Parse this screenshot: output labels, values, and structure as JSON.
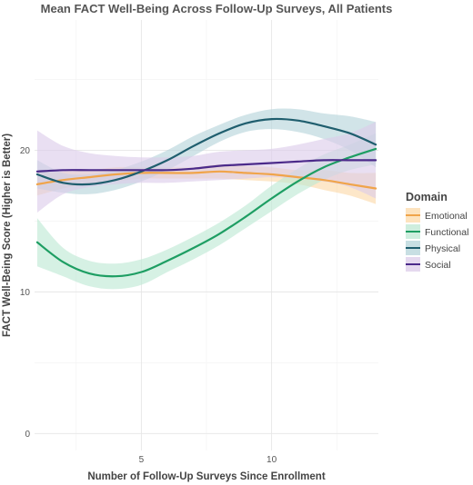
{
  "chart_data": {
    "type": "line",
    "title": "Mean FACT Well-Being Across Follow-Up Surveys, All Patients",
    "xlabel": "Number of Follow-Up Surveys Since Enrollment",
    "ylabel": "FACT Well-Being Score (Higher is Better)",
    "xlim": [
      0.9,
      14.1
    ],
    "ylim": [
      -1.2,
      29.2
    ],
    "x_ticks": [
      5,
      10
    ],
    "y_ticks": [
      0,
      10,
      20
    ],
    "grid": true,
    "legend_title": "Domain",
    "legend_position": "right",
    "x": [
      1,
      2,
      3,
      4,
      5,
      6,
      7,
      8,
      9,
      10,
      11,
      12,
      13,
      14
    ],
    "series": [
      {
        "name": "Emotional",
        "color": "#F0A44A",
        "fill": "#FCD9A8",
        "values": [
          17.6,
          17.9,
          18.1,
          18.3,
          18.4,
          18.4,
          18.4,
          18.5,
          18.4,
          18.3,
          18.1,
          17.9,
          17.6,
          17.3
        ],
        "lower": [
          16.8,
          17.3,
          17.6,
          17.8,
          18.0,
          18.0,
          18.0,
          18.0,
          17.9,
          17.8,
          17.6,
          17.2,
          16.8,
          16.2
        ],
        "upper": [
          18.4,
          18.5,
          18.6,
          18.8,
          18.8,
          18.8,
          18.8,
          19.0,
          18.9,
          18.8,
          18.6,
          18.6,
          18.4,
          18.4
        ]
      },
      {
        "name": "Functional",
        "color": "#1E9E63",
        "fill": "#BDE8D3",
        "values": [
          13.5,
          12.1,
          11.3,
          11.1,
          11.4,
          12.2,
          13.1,
          14.1,
          15.3,
          16.6,
          17.8,
          18.8,
          19.5,
          20.1
        ],
        "lower": [
          11.8,
          11.1,
          10.4,
          10.2,
          10.5,
          11.4,
          12.3,
          13.3,
          14.5,
          15.7,
          16.9,
          17.9,
          18.6,
          19.0
        ],
        "upper": [
          15.2,
          13.1,
          12.2,
          12.0,
          12.3,
          13.0,
          13.9,
          14.9,
          16.1,
          17.5,
          18.7,
          19.7,
          20.4,
          21.2
        ]
      },
      {
        "name": "Physical",
        "color": "#1F5E6E",
        "fill": "#B5D4DA",
        "values": [
          18.3,
          17.7,
          17.6,
          17.9,
          18.5,
          19.3,
          20.3,
          21.2,
          21.9,
          22.2,
          22.1,
          21.7,
          21.2,
          20.4
        ],
        "lower": [
          17.3,
          17.0,
          16.9,
          17.2,
          17.8,
          18.6,
          19.6,
          20.6,
          21.3,
          21.5,
          21.3,
          20.8,
          20.0,
          18.8
        ],
        "upper": [
          19.3,
          18.4,
          18.3,
          18.6,
          19.2,
          20.0,
          21.0,
          21.8,
          22.5,
          22.9,
          22.9,
          22.6,
          22.4,
          22.0
        ]
      },
      {
        "name": "Social",
        "color": "#4B2A8A",
        "fill": "#DCCCEA",
        "values": [
          18.5,
          18.6,
          18.6,
          18.6,
          18.6,
          18.6,
          18.7,
          18.9,
          19.0,
          19.1,
          19.2,
          19.3,
          19.3,
          19.3
        ],
        "lower": [
          15.6,
          16.9,
          17.4,
          17.6,
          17.7,
          17.7,
          17.8,
          17.9,
          18.0,
          18.1,
          18.0,
          17.8,
          17.4,
          16.6
        ],
        "upper": [
          21.4,
          20.3,
          19.8,
          19.6,
          19.5,
          19.5,
          19.6,
          19.9,
          20.0,
          20.1,
          20.4,
          20.8,
          21.2,
          22.0
        ]
      }
    ]
  }
}
